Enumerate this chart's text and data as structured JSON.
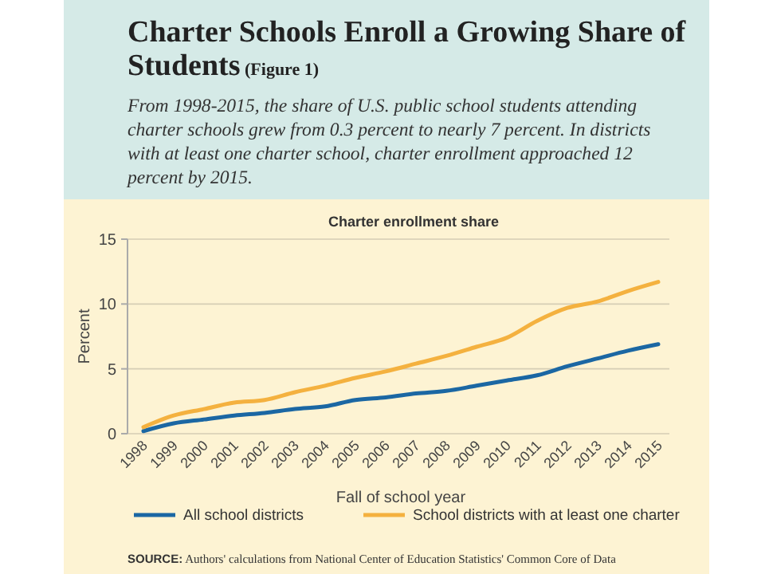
{
  "chart_data": {
    "type": "line",
    "title": "Charter Schools Enroll a Growing Share of Students",
    "subtitle": "(Figure 1)",
    "annotations": [
      "From 1998-2015, the share of U.S. public school students attending charter schools grew from 0.3 percent to nearly 7 percent. In districts with at least one charter school, charter enrollment approached 12 percent by 2015.",
      "Charter enrollment share",
      "SOURCE: Authors' calculations from National Center of Education Statistics' Common Core of Data"
    ],
    "xlabel": "Fall of school year",
    "ylabel": "Percent",
    "categories": [
      "1998",
      "1999",
      "2000",
      "2001",
      "2002",
      "2003",
      "2004",
      "2005",
      "2006",
      "2007",
      "2008",
      "2009",
      "2010",
      "2011",
      "2012",
      "2013",
      "2014",
      "2015"
    ],
    "series": [
      {
        "name": "All school districts",
        "color": "#1b67a3",
        "values": [
          0.2,
          0.8,
          1.1,
          1.4,
          1.6,
          1.9,
          2.1,
          2.6,
          2.8,
          3.1,
          3.3,
          3.7,
          4.1,
          4.5,
          5.2,
          5.8,
          6.4,
          6.9
        ]
      },
      {
        "name": "School districts with at least one charter",
        "color": "#f4b13f",
        "values": [
          0.5,
          1.4,
          1.9,
          2.4,
          2.6,
          3.2,
          3.7,
          4.3,
          4.8,
          5.4,
          6.0,
          6.7,
          7.4,
          8.7,
          9.7,
          10.2,
          11.0,
          11.7
        ]
      }
    ],
    "ylim": [
      0,
      15
    ],
    "yticks": [
      0,
      5,
      10,
      15
    ],
    "grid": "y",
    "legend": "bottom",
    "line_style": "solid"
  }
}
